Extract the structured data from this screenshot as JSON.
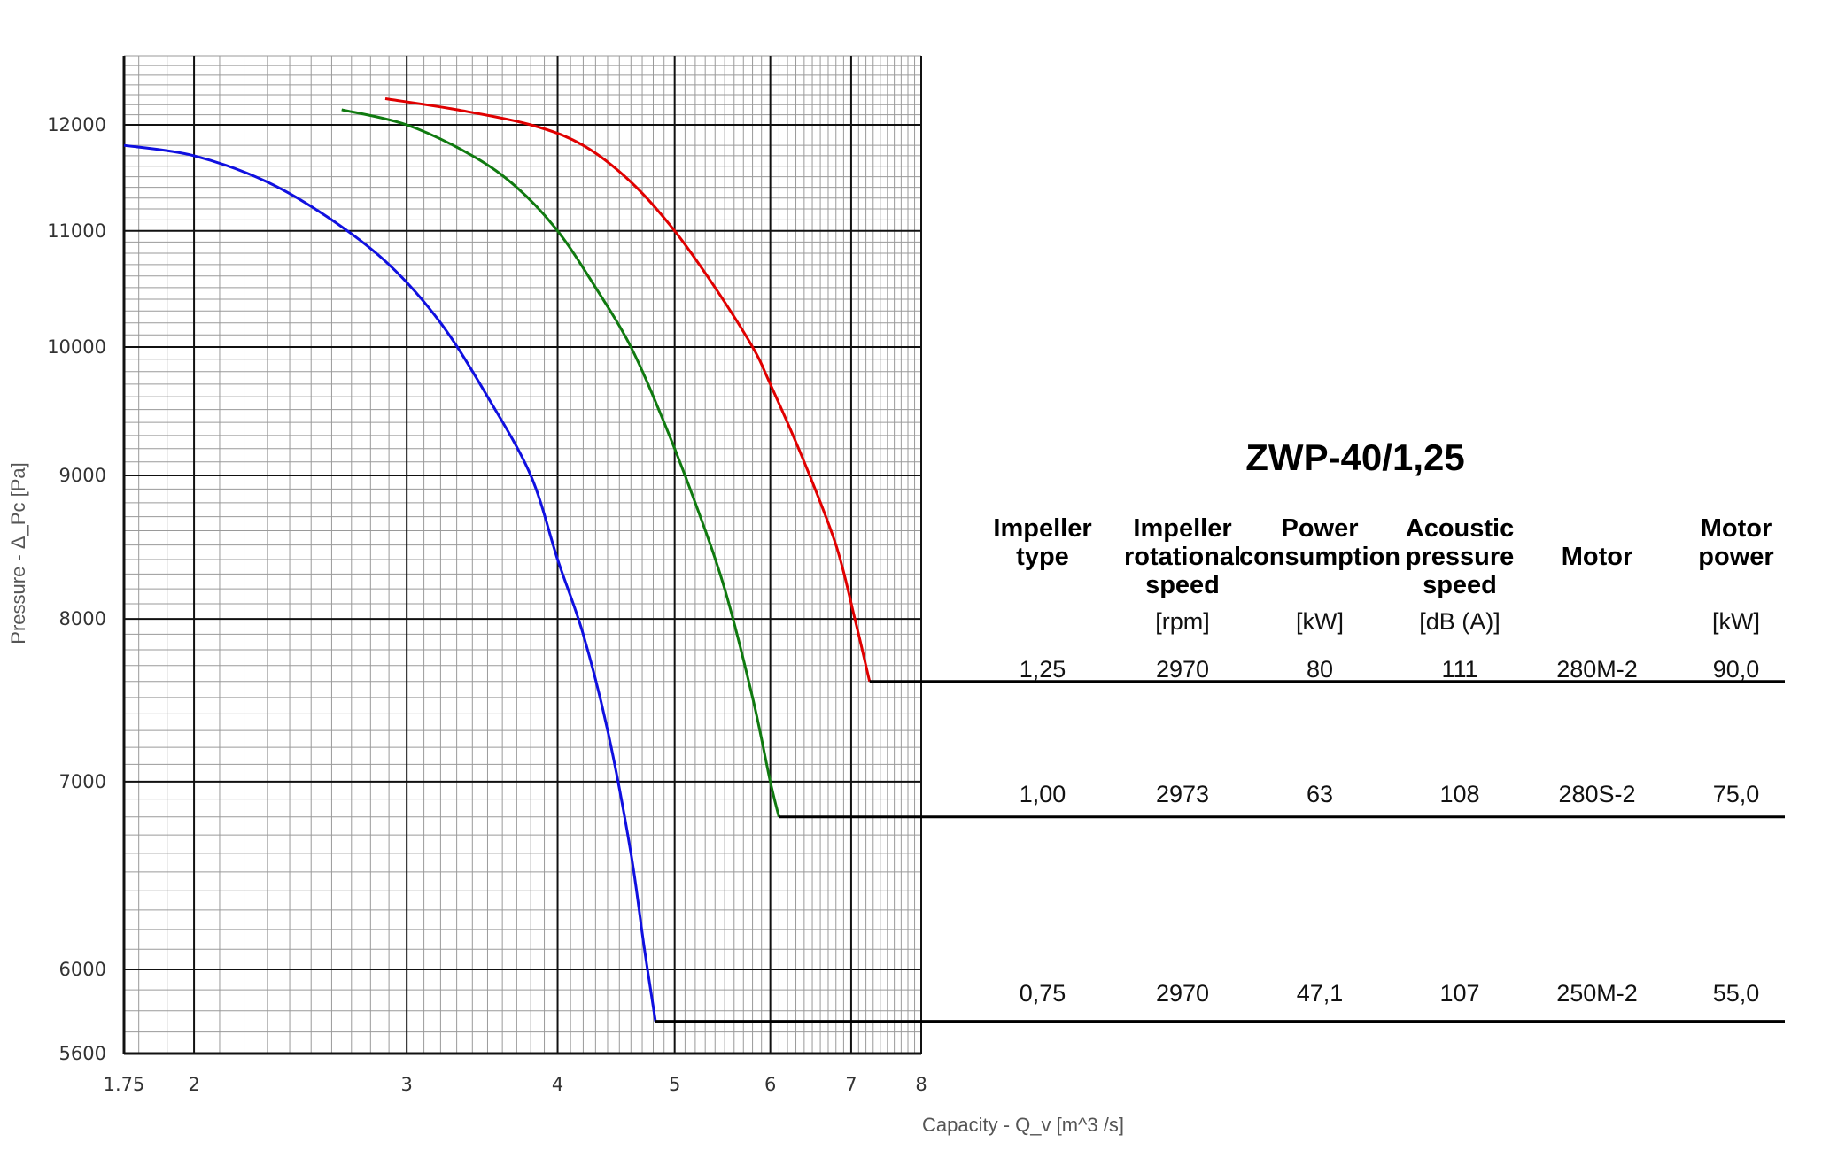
{
  "chart_data": {
    "type": "line",
    "title": "ZWP-40/1,25",
    "xlabel": "Capacity - Q_v [m^3 /s]",
    "ylabel": "Pressure - Δ_Pc [Pa]",
    "xscale": "log",
    "yscale": "log",
    "xlim": [
      1.75,
      8
    ],
    "ylim": [
      5600,
      12700
    ],
    "x_ticks": [
      "1.75",
      "2",
      "3",
      "4",
      "5",
      "6",
      "7",
      "8"
    ],
    "y_ticks": [
      "5600",
      "6000",
      "7000",
      "8000",
      "9000",
      "10000",
      "11000",
      "12000"
    ],
    "grid": true,
    "legend": "table at right",
    "series": [
      {
        "color": "#e00000",
        "impeller": "1,25",
        "x": [
          2.88,
          3.3,
          3.8,
          4.2,
          4.6,
          5.0,
          5.4,
          5.8,
          6.0,
          6.4,
          6.8,
          7.05,
          7.25
        ],
        "y": [
          12260,
          12150,
          12000,
          11800,
          11450,
          11000,
          10500,
          10000,
          9700,
          9100,
          8500,
          8000,
          7600
        ]
      },
      {
        "color": "#107a10",
        "impeller": "1,00",
        "x": [
          2.65,
          3.0,
          3.4,
          3.7,
          4.0,
          4.3,
          4.6,
          4.9,
          5.2,
          5.5,
          5.8,
          6.0,
          6.1
        ],
        "y": [
          12150,
          12000,
          11700,
          11400,
          11000,
          10500,
          10000,
          9400,
          8800,
          8200,
          7500,
          7000,
          6800
        ]
      },
      {
        "color": "#1010e0",
        "impeller": "0,75",
        "x": [
          1.75,
          2.0,
          2.3,
          2.6,
          2.9,
          3.2,
          3.5,
          3.8,
          4.0,
          4.2,
          4.4,
          4.6,
          4.72,
          4.82
        ],
        "y": [
          11800,
          11700,
          11450,
          11100,
          10700,
          10200,
          9600,
          9000,
          8400,
          7900,
          7300,
          6600,
          6100,
          5750
        ]
      }
    ]
  },
  "table": {
    "title": "ZWP-40/1,25",
    "columns": [
      {
        "header": [
          "Impeller",
          "type"
        ],
        "unit": ""
      },
      {
        "header": [
          "Impeller",
          "rotational",
          "speed"
        ],
        "unit": "[rpm]"
      },
      {
        "header": [
          "Power",
          "consumption"
        ],
        "unit": "[kW]"
      },
      {
        "header": [
          "Acoustic",
          "pressure",
          "speed"
        ],
        "unit": "[dB (A)]"
      },
      {
        "header": [
          "Motor"
        ],
        "unit": ""
      },
      {
        "header": [
          "Motor",
          "power"
        ],
        "unit": "[kW]"
      }
    ],
    "rows": [
      [
        "1,25",
        "2970",
        "80",
        "111",
        "280M-2",
        "90,0"
      ],
      [
        "1,00",
        "2973",
        "63",
        "108",
        "280S-2",
        "75,0"
      ],
      [
        "0,75",
        "2970",
        "47,1",
        "107",
        "250M-2",
        "55,0"
      ]
    ]
  }
}
